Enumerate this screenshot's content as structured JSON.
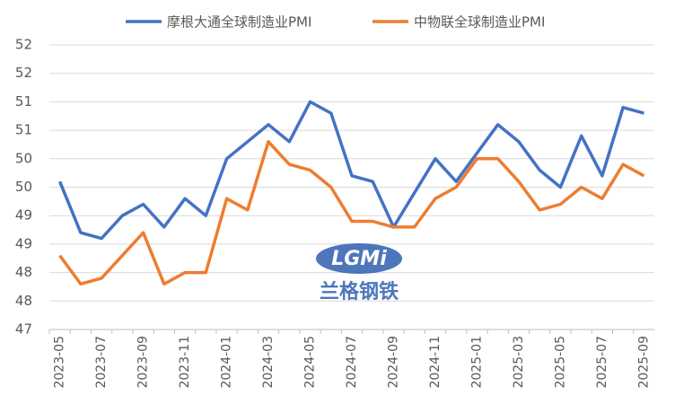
{
  "chart_data": {
    "type": "line",
    "categories": [
      "2023-05",
      null,
      "2023-07",
      null,
      "2023-09",
      null,
      "2023-11",
      null,
      "2024-01",
      null,
      "2024-03",
      null,
      "2024-05",
      null,
      "2024-07",
      null,
      "2024-09",
      null,
      "2024-11",
      null,
      "2025-01",
      null,
      "2025-03",
      null,
      "2025-05",
      null,
      "2025-07",
      null,
      "2025-09"
    ],
    "series": [
      {
        "name": "摩根大通全球制造业PMI",
        "color": "#4472c4",
        "values": [
          49.6,
          48.7,
          48.6,
          49.0,
          49.2,
          48.8,
          49.3,
          49.0,
          50.0,
          50.3,
          50.6,
          50.3,
          51.0,
          50.8,
          49.7,
          49.6,
          48.8,
          49.4,
          50.0,
          49.6,
          50.1,
          50.6,
          50.3,
          49.8,
          49.5,
          50.4,
          49.7,
          50.9,
          50.8
        ]
      },
      {
        "name": "中物联全球制造业PMI",
        "color": "#ed7d31",
        "values": [
          48.3,
          47.8,
          47.9,
          48.3,
          48.7,
          47.8,
          48.0,
          48.0,
          49.3,
          49.1,
          50.3,
          49.9,
          49.8,
          49.5,
          48.9,
          48.9,
          48.8,
          48.8,
          49.3,
          49.5,
          50.0,
          50.0,
          49.6,
          49.1,
          49.2,
          49.5,
          49.3,
          49.9,
          49.7
        ]
      }
    ],
    "ylim": [
      47,
      52
    ],
    "yticks": [
      47,
      {
        "value": 47.5,
        "label": "48"
      },
      48,
      {
        "value": 48.5,
        "label": "49"
      },
      49,
      {
        "value": 49.5,
        "label": "50"
      },
      50,
      {
        "value": 50.5,
        "label": "51"
      },
      51,
      {
        "value": 51.5,
        "label": "52"
      },
      52
    ],
    "grid": true,
    "legend": "top",
    "watermark": {
      "logo": "LGMi",
      "text": "兰格钢铁"
    }
  }
}
